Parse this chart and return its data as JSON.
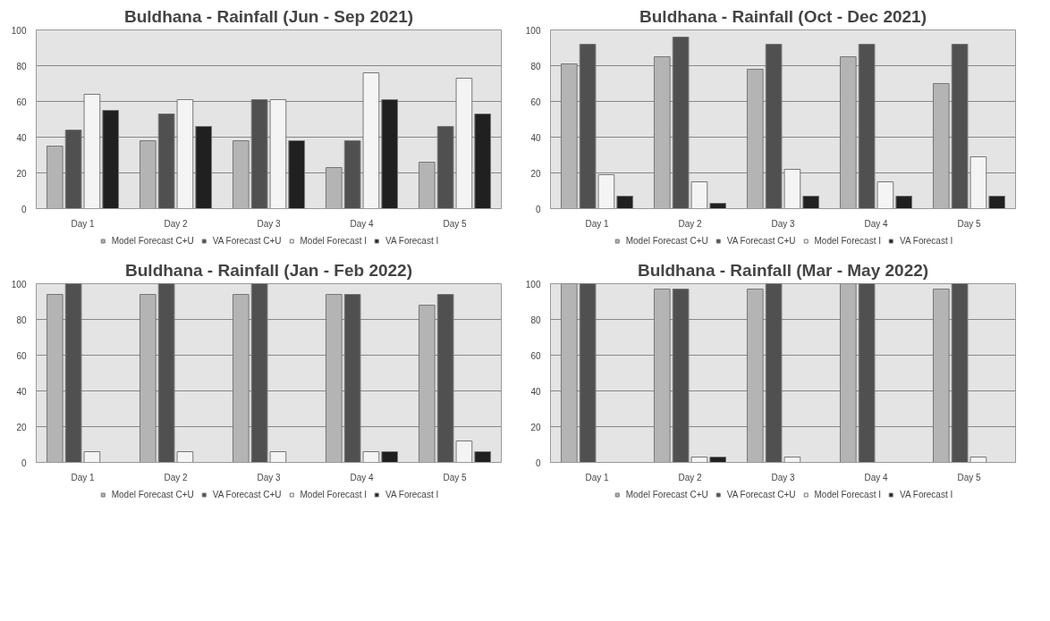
{
  "chart_data": [
    {
      "type": "bar",
      "title": "Buldhana - Rainfall (Jun - Sep 2021)",
      "categories": [
        "Day 1",
        "Day 2",
        "Day 3",
        "Day 4",
        "Day 5"
      ],
      "ylim": [
        0,
        100
      ],
      "yticks": [
        0,
        20,
        40,
        60,
        80,
        100
      ],
      "grid": "y",
      "legend": "bottom",
      "series": [
        {
          "name": "Model Forecast C+U",
          "color": "#b4b4b4",
          "values": [
            35,
            38,
            38,
            23,
            26
          ]
        },
        {
          "name": "VA Forecast C+U",
          "color": "#505050",
          "values": [
            44,
            53,
            61,
            38,
            46
          ]
        },
        {
          "name": "Model Forecast I",
          "color": "#f4f4f4",
          "values": [
            64,
            61,
            61,
            76,
            73
          ]
        },
        {
          "name": "VA Forecast I",
          "color": "#202020",
          "values": [
            55,
            46,
            38,
            61,
            53
          ]
        }
      ]
    },
    {
      "type": "bar",
      "title": "Buldhana - Rainfall (Oct - Dec 2021)",
      "categories": [
        "Day 1",
        "Day 2",
        "Day 3",
        "Day 4",
        "Day 5"
      ],
      "ylim": [
        0,
        100
      ],
      "yticks": [
        0,
        20,
        40,
        60,
        80,
        100
      ],
      "grid": "y",
      "legend": "bottom",
      "series": [
        {
          "name": "Model Forecast C+U",
          "color": "#b4b4b4",
          "values": [
            81,
            85,
            78,
            85,
            70
          ]
        },
        {
          "name": "VA Forecast C+U",
          "color": "#505050",
          "values": [
            92,
            96,
            92,
            92,
            92
          ]
        },
        {
          "name": "Model Forecast I",
          "color": "#f4f4f4",
          "values": [
            19,
            15,
            22,
            15,
            29
          ]
        },
        {
          "name": "VA Forecast I",
          "color": "#202020",
          "values": [
            7,
            3,
            7,
            7,
            7
          ]
        }
      ]
    },
    {
      "type": "bar",
      "title": "Buldhana - Rainfall (Jan - Feb 2022)",
      "categories": [
        "Day 1",
        "Day 2",
        "Day 3",
        "Day 4",
        "Day 5"
      ],
      "ylim": [
        0,
        100
      ],
      "yticks": [
        0,
        20,
        40,
        60,
        80,
        100
      ],
      "grid": "y",
      "legend": "bottom",
      "series": [
        {
          "name": "Model Forecast C+U",
          "color": "#b4b4b4",
          "values": [
            94,
            94,
            94,
            94,
            88
          ]
        },
        {
          "name": "VA Forecast C+U",
          "color": "#505050",
          "values": [
            100,
            100,
            100,
            94,
            94
          ]
        },
        {
          "name": "Model Forecast I",
          "color": "#f4f4f4",
          "values": [
            6,
            6,
            6,
            6,
            12
          ]
        },
        {
          "name": "VA Forecast I",
          "color": "#202020",
          "values": [
            0,
            0,
            0,
            6,
            6
          ]
        }
      ]
    },
    {
      "type": "bar",
      "title": "Buldhana - Rainfall (Mar - May 2022)",
      "categories": [
        "Day 1",
        "Day 2",
        "Day 3",
        "Day 4",
        "Day 5"
      ],
      "ylim": [
        0,
        100
      ],
      "yticks": [
        0,
        20,
        40,
        60,
        80,
        100
      ],
      "grid": "y",
      "legend": "bottom",
      "series": [
        {
          "name": "Model Forecast C+U",
          "color": "#b4b4b4",
          "values": [
            100,
            97,
            97,
            100,
            97
          ]
        },
        {
          "name": "VA Forecast C+U",
          "color": "#505050",
          "values": [
            100,
            97,
            100,
            100,
            100
          ]
        },
        {
          "name": "Model Forecast I",
          "color": "#f4f4f4",
          "values": [
            0,
            3,
            3,
            0,
            3
          ]
        },
        {
          "name": "VA Forecast I",
          "color": "#202020",
          "values": [
            0,
            3,
            0,
            0,
            0
          ]
        }
      ]
    }
  ]
}
